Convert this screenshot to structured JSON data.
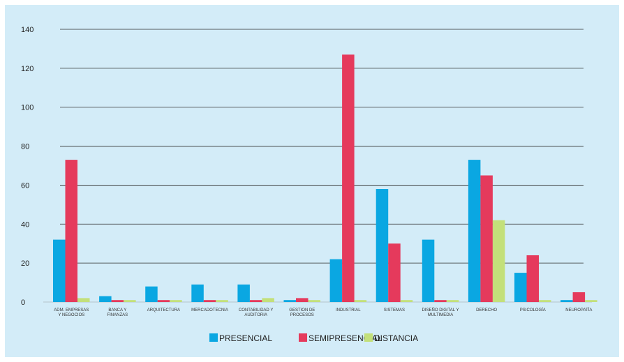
{
  "chart_data": {
    "type": "bar",
    "categories": [
      [
        "ADM. EMPRESAS",
        "Y NEGOCIOS"
      ],
      [
        "BANCA Y",
        "FINANZAS"
      ],
      [
        "ARQUITECTURA"
      ],
      [
        "MERCADOTECNIA"
      ],
      [
        "CONTABILIDAD Y",
        "AUDITORIA"
      ],
      [
        "GESTION DE",
        "PROCESOS"
      ],
      [
        "INDUSTRIAL"
      ],
      [
        "SISTEMAS"
      ],
      [
        "DISEÑO DIGITAL Y",
        "MULTIMEDIA"
      ],
      [
        "DERECHO"
      ],
      [
        "PSICOLOGÍA"
      ],
      [
        "NEUROPATÍA"
      ]
    ],
    "series": [
      {
        "name": "PRESENCIAL",
        "color": "#0aa7e2",
        "values": [
          32,
          3,
          8,
          9,
          9,
          1,
          22,
          58,
          32,
          73,
          15,
          1
        ]
      },
      {
        "name": "SEMIPRESENCIAL",
        "color": "#e53a5c",
        "values": [
          73,
          1,
          1,
          1,
          1,
          2,
          127,
          30,
          1,
          65,
          24,
          5
        ]
      },
      {
        "name": "DISTANCIA",
        "color": "#c3e07a",
        "values": [
          2,
          1,
          1,
          1,
          2,
          1,
          1,
          1,
          1,
          42,
          1,
          1
        ]
      }
    ],
    "yticks": [
      0,
      20,
      40,
      60,
      80,
      100,
      120,
      140
    ],
    "ylim": [
      0,
      140
    ],
    "grid": true,
    "legend_position": "bottom-center",
    "title": "",
    "xlabel": "",
    "ylabel": ""
  }
}
